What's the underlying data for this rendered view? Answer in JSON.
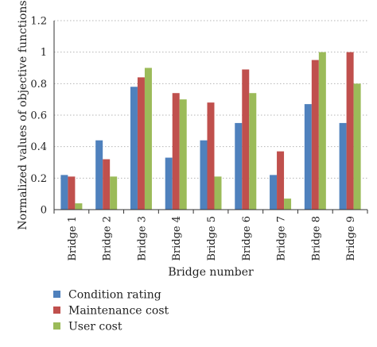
{
  "chart_data": {
    "type": "bar",
    "title": "",
    "xlabel": "Bridge number",
    "ylabel": "Normalized values of objective functions",
    "ylim": [
      0,
      1.2
    ],
    "yticks": [
      "0",
      "0.2",
      "0.4",
      "0.6",
      "0.8",
      "1",
      "1.2"
    ],
    "ytick_values": [
      0,
      0.2,
      0.4,
      0.6,
      0.8,
      1.0,
      1.2
    ],
    "grid": true,
    "legend_position": "bottom-left",
    "categories": [
      "Bridge 1",
      "Bridge 2",
      "Bridge 3",
      "Bridge 4",
      "Bridge 5",
      "Bridge 6",
      "Bridge 7",
      "Bridge 8",
      "Bridge 9"
    ],
    "series": [
      {
        "name": "Condition rating",
        "color": "#4f81bd",
        "values": [
          0.22,
          0.44,
          0.78,
          0.33,
          0.44,
          0.55,
          0.22,
          0.67,
          0.55
        ]
      },
      {
        "name": "Maintenance cost",
        "color": "#c0504d",
        "values": [
          0.21,
          0.32,
          0.84,
          0.74,
          0.68,
          0.89,
          0.37,
          0.95,
          1.0
        ]
      },
      {
        "name": "User cost",
        "color": "#9bbb59",
        "values": [
          0.04,
          0.21,
          0.9,
          0.7,
          0.21,
          0.74,
          0.07,
          1.0,
          0.8
        ]
      }
    ]
  }
}
